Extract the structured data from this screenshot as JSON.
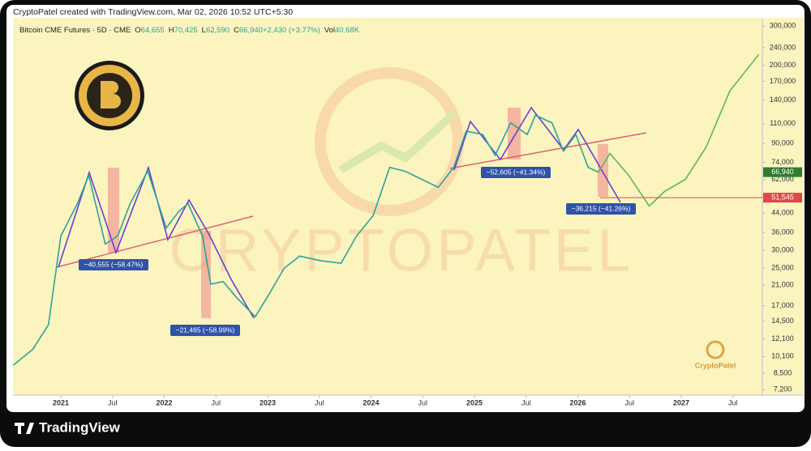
{
  "header": {
    "credit": "CryptoPatel created with TradingView.com, Mar 02, 2026 10:52 UTC+5:30"
  },
  "chart_data": {
    "type": "line",
    "symbol": "Bitcoin CME Futures · 5D · CME",
    "quote": [
      {
        "key": "O",
        "value": "64,655"
      },
      {
        "key": "H",
        "value": "70,425"
      },
      {
        "key": "L",
        "value": "62,590"
      },
      {
        "key": "C",
        "value": "66,940"
      },
      {
        "key": "",
        "value": "+2,430 (+3.77%)"
      },
      {
        "key": "Vol",
        "value": "40.68K"
      }
    ],
    "log_scale": true,
    "xlim": [
      2020.537,
      2027.784
    ],
    "ylim": [
      6800,
      326000
    ],
    "xticks": [
      2021,
      {
        "value": 2021.5,
        "label": "Jul"
      },
      2022,
      {
        "value": 2022.5,
        "label": "Jul"
      },
      2023,
      {
        "value": 2023.5,
        "label": "Jul"
      },
      2024,
      {
        "value": 2024.5,
        "label": "Jul"
      },
      2025,
      {
        "value": 2025.5,
        "label": "Jul"
      },
      2026,
      {
        "value": 2026.5,
        "label": "Jul"
      },
      2027,
      {
        "value": 2027.5,
        "label": "Jul"
      }
    ],
    "yticks": [
      {
        "value": 300000,
        "label": "300,000"
      },
      {
        "value": 240000,
        "label": "240,000"
      },
      {
        "value": 200000,
        "label": "200,000"
      },
      {
        "value": 170000,
        "label": "170,000"
      },
      {
        "value": 140000,
        "label": "140,000"
      },
      {
        "value": 110000,
        "label": "110,000"
      },
      {
        "value": 90000,
        "label": "90,000"
      },
      {
        "value": 74000,
        "label": "74,000"
      },
      {
        "value": 62000,
        "label": "62,000"
      },
      {
        "value": 44000,
        "label": "44,000"
      },
      {
        "value": 36000,
        "label": "36,000"
      },
      {
        "value": 30000,
        "label": "30,000"
      },
      {
        "value": 25000,
        "label": "25,000"
      },
      {
        "value": 21000,
        "label": "21,000"
      },
      {
        "value": 17000,
        "label": "17,000"
      },
      {
        "value": 14500,
        "label": "14,500"
      },
      {
        "value": 12100,
        "label": "12,100"
      },
      {
        "value": 10100,
        "label": "10,100"
      },
      {
        "value": 8500,
        "label": "8,500"
      },
      {
        "value": 7200,
        "label": "7,200"
      }
    ],
    "series": [
      {
        "color": "#26a69a",
        "x": [
          2020.54,
          2020.73,
          2020.88,
          2021.0,
          2021.16,
          2021.27,
          2021.43,
          2021.55,
          2021.67,
          2021.84,
          2022.02,
          2022.14,
          2022.23,
          2022.37,
          2022.45,
          2022.57,
          2022.69,
          2022.88,
          2023.0,
          2023.16,
          2023.31,
          2023.51,
          2023.71,
          2023.86,
          2024.02,
          2024.18,
          2024.33,
          2024.49,
          2024.65,
          2024.8,
          2024.92,
          2025.08,
          2025.2,
          2025.35,
          2025.51,
          2025.59,
          2025.75,
          2025.86,
          2025.98,
          2026.1,
          2026.2
        ],
        "values": [
          9250,
          10900,
          14000,
          34800,
          48500,
          64700,
          32000,
          34800,
          48500,
          67600,
          37800,
          44700,
          48500,
          34800,
          21200,
          21800,
          18700,
          15200,
          18700,
          25000,
          28300,
          27000,
          26300,
          34800,
          42900,
          70300,
          67600,
          62200,
          57300,
          70300,
          102000,
          98500,
          79600,
          111000,
          98500,
          120000,
          111000,
          83000,
          98500,
          70300,
          66940
        ]
      },
      {
        "color": "#5cb85c",
        "x": [
          2026.2,
          2026.31,
          2026.49,
          2026.69,
          2026.84,
          2027.04,
          2027.24,
          2027.47,
          2027.75
        ],
        "values": [
          66940,
          81100,
          64900,
          47300,
          55000,
          62200,
          86500,
          154000,
          224000
        ]
      }
    ],
    "price_labels": [
      {
        "value": 66940,
        "label": "66,940",
        "color": "#2e7d32"
      },
      {
        "value": 51545,
        "label": "51,545",
        "color": "#e04848"
      }
    ],
    "annotations": [
      "−40,555 (−58.47%)",
      "−21,465 (−58.99%)",
      "−52,605 (−41.34%)",
      "−36,215 (−41.26%)"
    ],
    "watermark": "CRYPTOPATEL",
    "logo_text": "CryptoPatel"
  },
  "footer": {
    "brand": "TradingView"
  }
}
